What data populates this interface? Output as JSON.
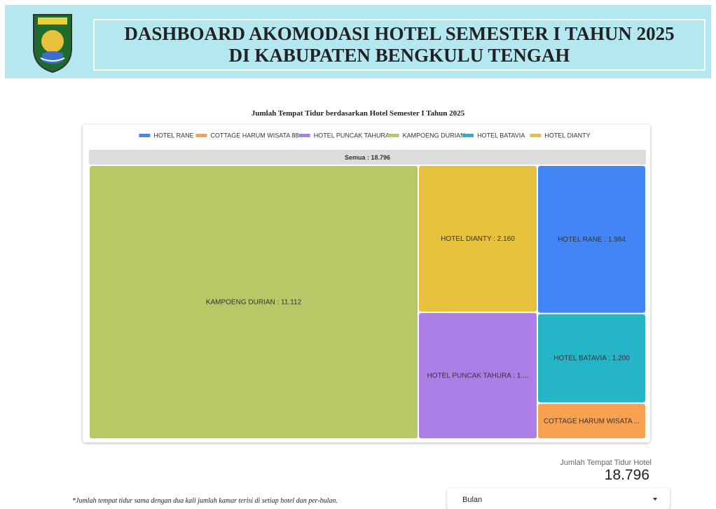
{
  "header": {
    "title_line1": "DASHBOARD AKOMODASI HOTEL SEMESTER I TAHUN 2025",
    "title_line2": "DI KABUPATEN BENGKULU TENGAH"
  },
  "chart_data": {
    "type": "treemap",
    "title": "Jumlah Tempat Tidur berdasarkan Hotel Semester I Tahun 2025",
    "root_label": "Semua : 18.796",
    "total": 18796,
    "categories": [
      "HOTEL RANE",
      "COTTAGE HARUM WISATA 88",
      "HOTEL PUNCAK TAHURA",
      "KAMPOENG DURIAN",
      "HOTEL BATAVIA",
      "HOTEL DIANTY"
    ],
    "values": [
      1984,
      480,
      1860,
      11112,
      1200,
      2160
    ],
    "node_labels": [
      "HOTEL RANE : 1.984",
      "COTTAGE HARUM WISATA ...",
      "HOTEL PUNCAK TAHURA : 1....",
      "KAMPOENG DURIAN : 11.112",
      "HOTEL BATAVIA : 1.200",
      "HOTEL DIANTY : 2.160"
    ],
    "colors": [
      "#4285f4",
      "#f9a152",
      "#ab7fe6",
      "#b7c866",
      "#26b5c7",
      "#e8c13c"
    ],
    "legend": "top"
  },
  "scorecard": {
    "label": "Jumlah Tempat Tidur Hotel",
    "value": "18.796"
  },
  "note": "*Jumlah tempat tidur sama dengan dua kali jumlah kamar terisi di setiap hotel dan per-bulan.",
  "filter": {
    "label": "Bulan"
  }
}
